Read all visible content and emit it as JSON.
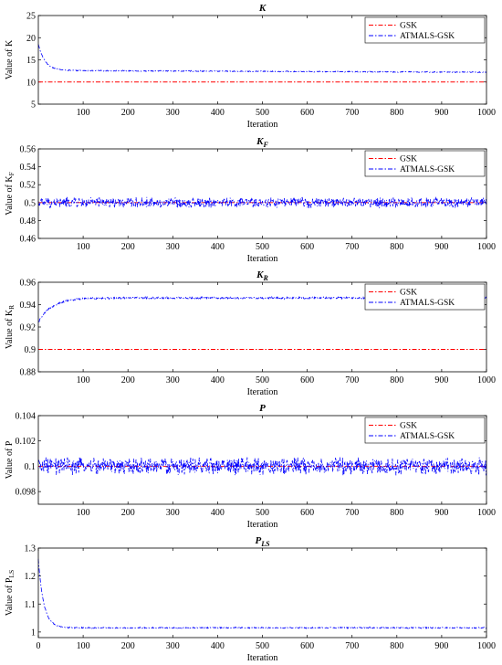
{
  "colors": {
    "gsk": "#ff0000",
    "atmals": "#0000ff"
  },
  "chart_data": [
    {
      "type": "line",
      "title": "K",
      "title_sub": "",
      "ylabel": "Value of K",
      "ylabel_sub": "",
      "xlabel": "Iteration",
      "xlim": [
        0,
        1000
      ],
      "ylim": [
        5,
        25
      ],
      "x_ticks": [
        "100",
        "200",
        "300",
        "400",
        "500",
        "600",
        "700",
        "800",
        "900",
        "1000"
      ],
      "y_ticks": [
        "5",
        "10",
        "15",
        "20",
        "25"
      ],
      "y_tick_values": [
        5,
        10,
        15,
        20,
        25
      ],
      "legend": "top-right",
      "series": [
        {
          "name": "GSK",
          "style": "dash-dot",
          "color": "#ff0000",
          "constant": 10
        },
        {
          "name": "ATMALS-GSK",
          "style": "dash-dot",
          "color": "#0000ff",
          "start": 18.5,
          "settle": 12.6,
          "decay": 15,
          "noise": 0.1,
          "drift": -0.4
        }
      ]
    },
    {
      "type": "line",
      "title": "K",
      "title_sub": "F",
      "ylabel": "Value of K",
      "ylabel_sub": "F",
      "xlabel": "Iteration",
      "xlim": [
        0,
        1000
      ],
      "ylim": [
        0.46,
        0.56
      ],
      "x_ticks": [
        "100",
        "200",
        "300",
        "400",
        "500",
        "600",
        "700",
        "800",
        "900",
        "1000"
      ],
      "y_ticks": [
        "0.46",
        "0.48",
        "0.5",
        "0.52",
        "0.54",
        "0.56"
      ],
      "y_tick_values": [
        0.46,
        0.48,
        0.5,
        0.52,
        0.54,
        0.56
      ],
      "legend": "top-right",
      "series": [
        {
          "name": "GSK",
          "style": "dash-dot",
          "color": "#ff0000",
          "constant": 0.5
        },
        {
          "name": "ATMALS-GSK",
          "style": "dash-dot",
          "color": "#0000ff",
          "start": 0.5,
          "settle": 0.5,
          "decay": 1,
          "noise": 0.005,
          "drift": 0
        }
      ]
    },
    {
      "type": "line",
      "title": "K",
      "title_sub": "R",
      "ylabel": "Value of K",
      "ylabel_sub": "R",
      "xlabel": "Iteration",
      "xlim": [
        0,
        1000
      ],
      "ylim": [
        0.88,
        0.96
      ],
      "x_ticks": [
        "100",
        "200",
        "300",
        "400",
        "500",
        "600",
        "700",
        "800",
        "900",
        "1000"
      ],
      "y_ticks": [
        "0.88",
        "0.9",
        "0.92",
        "0.94",
        "0.96"
      ],
      "y_tick_values": [
        0.88,
        0.9,
        0.92,
        0.94,
        0.96
      ],
      "legend": "top-right",
      "series": [
        {
          "name": "GSK",
          "style": "dash-dot",
          "color": "#ff0000",
          "constant": 0.9
        },
        {
          "name": "ATMALS-GSK",
          "style": "dash-dot",
          "color": "#0000ff",
          "start": 0.924,
          "settle": 0.946,
          "decay": 30,
          "noise": 0.0008,
          "drift": 0
        }
      ]
    },
    {
      "type": "line",
      "title": "P",
      "title_sub": "",
      "ylabel": "Value of P",
      "ylabel_sub": "",
      "xlabel": "Iteration",
      "xlim": [
        0,
        1000
      ],
      "ylim": [
        0.097,
        0.104
      ],
      "x_ticks": [
        "100",
        "200",
        "300",
        "400",
        "500",
        "600",
        "700",
        "800",
        "900",
        "1000"
      ],
      "y_ticks": [
        "0.098",
        "0.1",
        "0.102",
        "0.104"
      ],
      "y_tick_values": [
        0.098,
        0.1,
        0.102,
        0.104
      ],
      "legend": "top-right",
      "series": [
        {
          "name": "GSK",
          "style": "dash-dot",
          "color": "#ff0000",
          "constant": 0.1
        },
        {
          "name": "ATMALS-GSK",
          "style": "dash-dot",
          "color": "#0000ff",
          "start": 0.1,
          "settle": 0.1,
          "decay": 1,
          "noise": 0.0006,
          "drift": 0
        }
      ]
    },
    {
      "type": "line",
      "title": "P",
      "title_sub": "LS",
      "ylabel": "Value of P",
      "ylabel_sub": "LS",
      "xlabel": "Iteration",
      "xlim": [
        0,
        1000
      ],
      "ylim": [
        0.98,
        1.3
      ],
      "x_ticks": [
        "0",
        "100",
        "200",
        "300",
        "400",
        "500",
        "600",
        "700",
        "800",
        "900",
        "1000"
      ],
      "y_ticks": [
        "1",
        "1.1",
        "1.2",
        "1.3"
      ],
      "y_tick_values": [
        1,
        1.1,
        1.2,
        1.3
      ],
      "legend": "none",
      "series": [
        {
          "name": "ATMALS-GSK",
          "style": "dash-dot",
          "color": "#0000ff",
          "start": 1.26,
          "settle": 1.015,
          "decay": 12,
          "noise": 0.002,
          "drift": 0
        }
      ]
    }
  ]
}
